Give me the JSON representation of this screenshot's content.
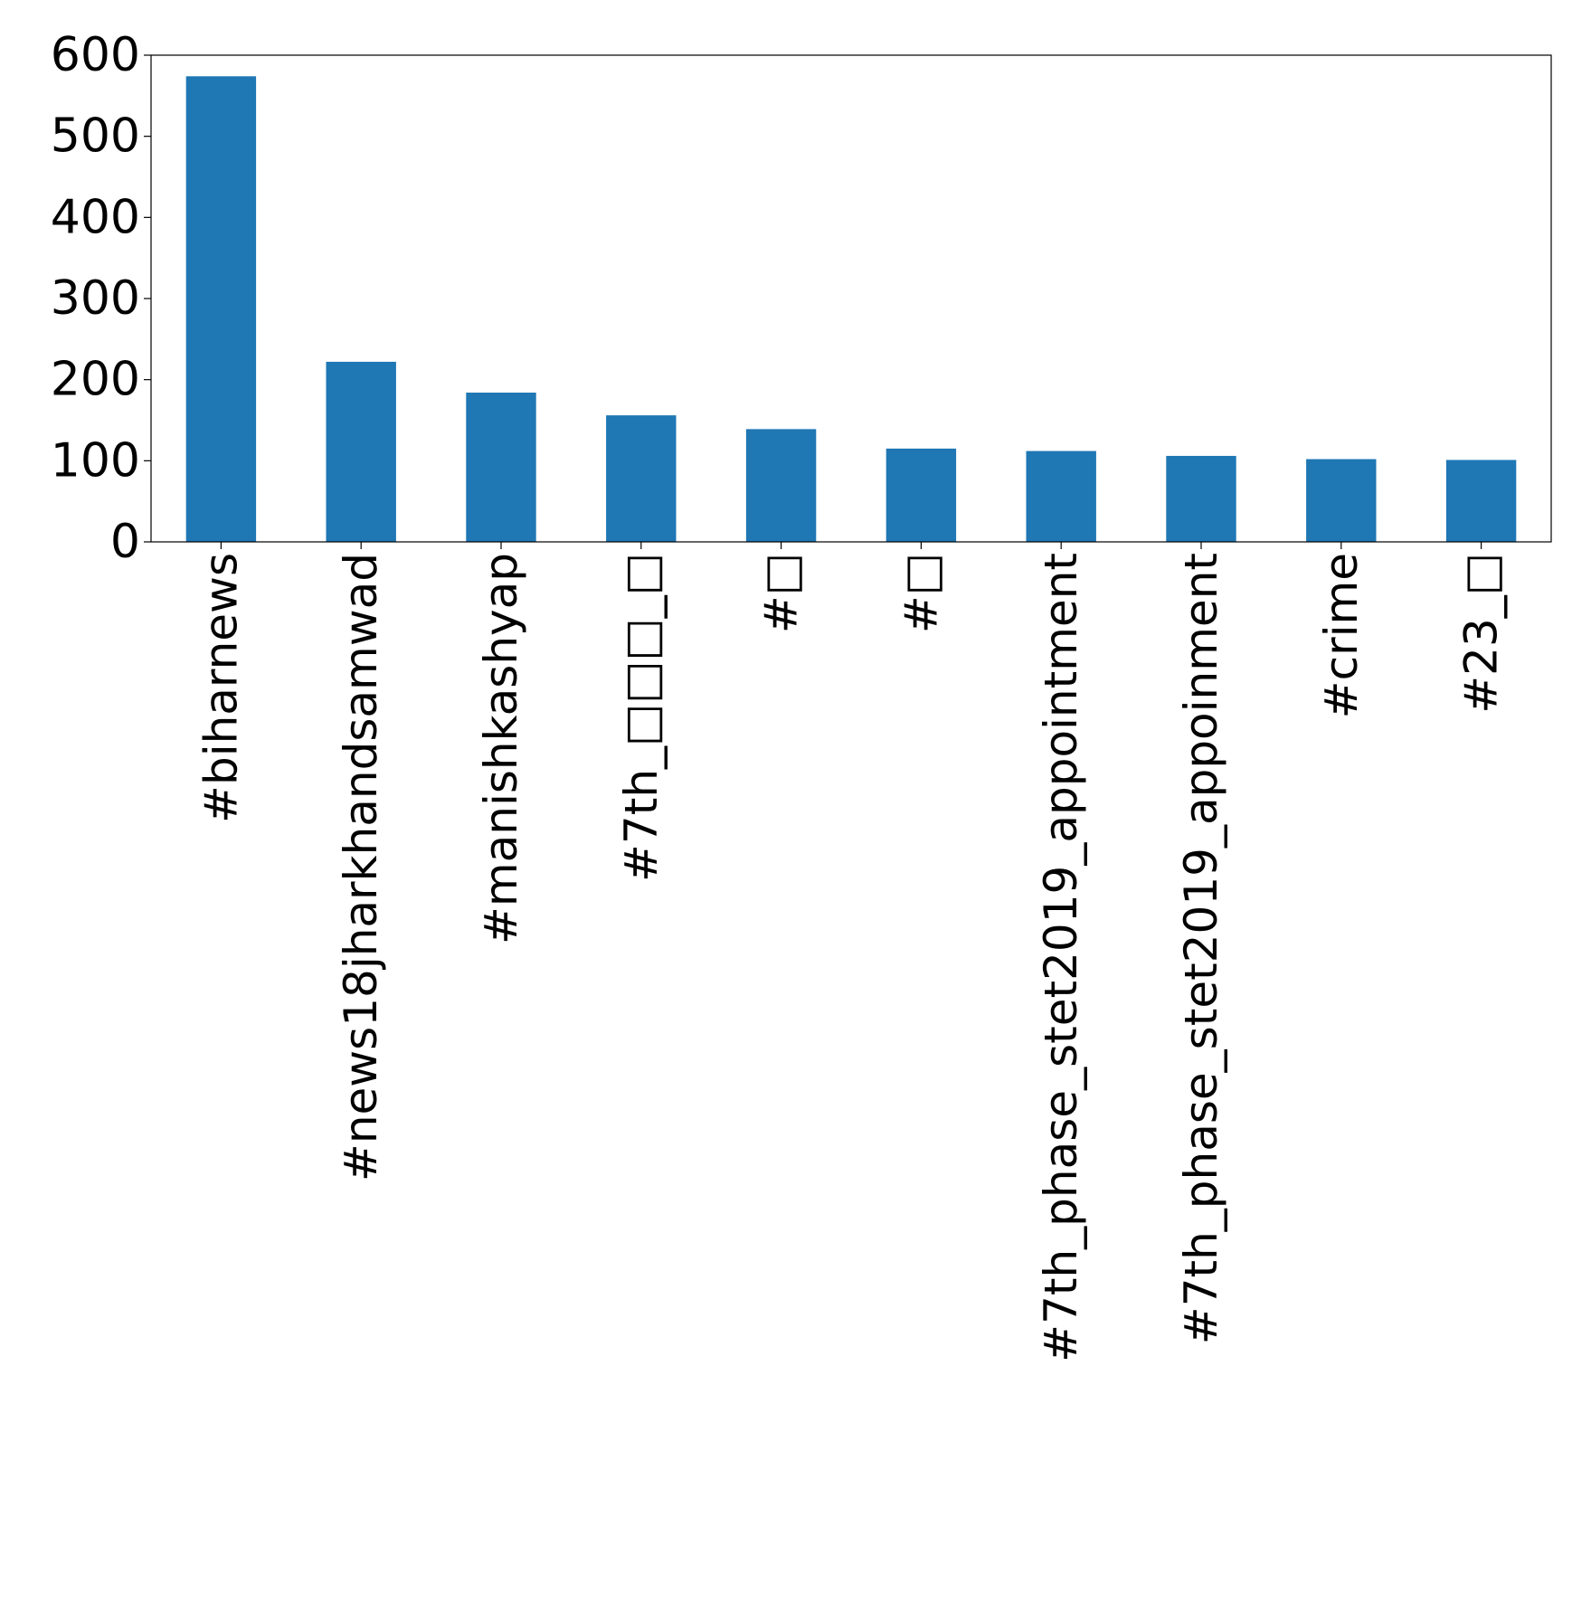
{
  "chart_data": {
    "type": "bar",
    "title": "",
    "xlabel": "",
    "ylabel": "",
    "categories": [
      "#biharnews",
      "#news18jharkhandsamwad",
      "#manishkashyap",
      "#7th_□□□_□",
      "#□",
      "#□",
      "#7th_phase_stet2019_appointment",
      "#7th_phase_stet2019_appoinment",
      "#crime",
      "#23_□"
    ],
    "values": [
      574,
      222,
      184,
      156,
      139,
      115,
      112,
      106,
      102,
      101
    ],
    "ylim": [
      0,
      600
    ],
    "yticks": [
      0,
      100,
      200,
      300,
      400,
      500,
      600
    ],
    "ytick_labels": [
      "0",
      "100",
      "200",
      "300",
      "400",
      "500",
      "600"
    ],
    "bar_color": "#1f77b4",
    "grid": false,
    "legend": "none"
  }
}
